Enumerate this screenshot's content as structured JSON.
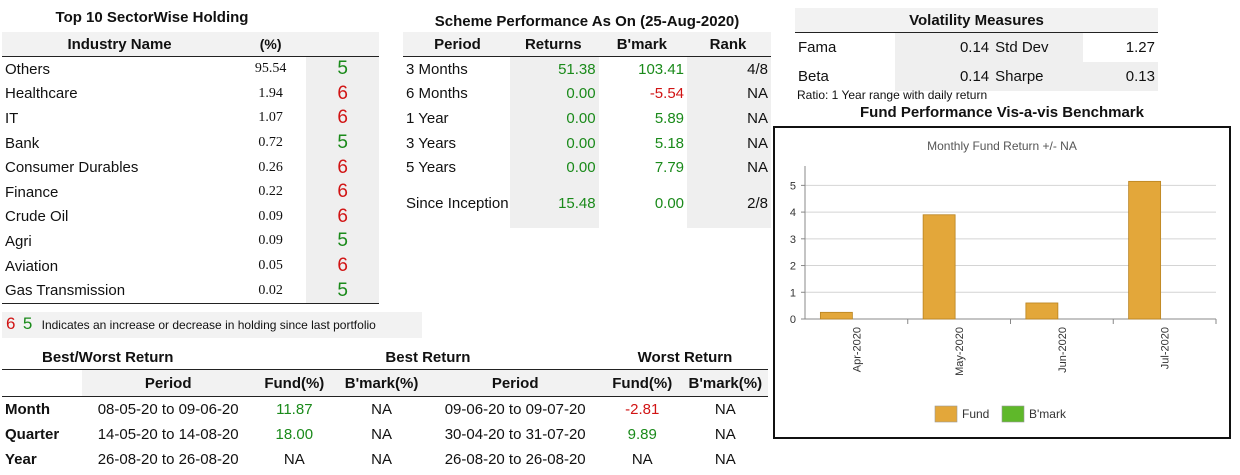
{
  "sector": {
    "title": "Top 10 SectorWise Holding",
    "col_name": "Industry Name",
    "col_pct": "(%)",
    "rows": [
      {
        "name": "Others",
        "pct": "95.54",
        "ind": "5",
        "dir": "green"
      },
      {
        "name": "Healthcare",
        "pct": "1.94",
        "ind": "6",
        "dir": "red"
      },
      {
        "name": "IT",
        "pct": "1.07",
        "ind": "6",
        "dir": "red"
      },
      {
        "name": "Bank",
        "pct": "0.72",
        "ind": "5",
        "dir": "green"
      },
      {
        "name": "Consumer Durables",
        "pct": "0.26",
        "ind": "6",
        "dir": "red"
      },
      {
        "name": "Finance",
        "pct": "0.22",
        "ind": "6",
        "dir": "red"
      },
      {
        "name": "Crude Oil",
        "pct": "0.09",
        "ind": "6",
        "dir": "red"
      },
      {
        "name": "Agri",
        "pct": "0.09",
        "ind": "5",
        "dir": "green"
      },
      {
        "name": "Aviation",
        "pct": "0.05",
        "ind": "6",
        "dir": "red"
      },
      {
        "name": "Gas Transmission",
        "pct": "0.02",
        "ind": "5",
        "dir": "green"
      }
    ],
    "legend": {
      "up": "6",
      "down": "5",
      "text": "Indicates an increase or decrease in holding since last portfolio"
    }
  },
  "performance": {
    "title": "Scheme Performance As On (25-Aug-2020)",
    "headers": [
      "Period",
      "Returns",
      "B'mark",
      "Rank"
    ],
    "rows": [
      {
        "period": "3 Months",
        "ret": "51.38",
        "bm": "103.41",
        "rank": "4/8",
        "bm_color": "green"
      },
      {
        "period": "6 Months",
        "ret": "0.00",
        "bm": "-5.54",
        "rank": "NA",
        "bm_color": "red"
      },
      {
        "period": "1 Year",
        "ret": "0.00",
        "bm": "5.89",
        "rank": "NA",
        "bm_color": "green"
      },
      {
        "period": "3 Years",
        "ret": "0.00",
        "bm": "5.18",
        "rank": "NA",
        "bm_color": "green"
      },
      {
        "period": "5 Years",
        "ret": "0.00",
        "bm": "7.79",
        "rank": "NA",
        "bm_color": "green"
      },
      {
        "period": "Since Inception",
        "ret": "15.48",
        "bm": "0.00",
        "rank": "2/8",
        "bm_color": "green"
      }
    ]
  },
  "volatility": {
    "title": "Volatility Measures",
    "rows": [
      {
        "l1": "Fama",
        "v1": "0.14",
        "l2": "Std Dev",
        "v2": "1.27"
      },
      {
        "l1": "Beta",
        "v1": "0.14",
        "l2": "Sharpe",
        "v2": "0.13"
      }
    ],
    "note": "Ratio: 1 Year range with daily return"
  },
  "bestworst": {
    "group_headers": [
      "Best/Worst Return",
      "Best Return",
      "Worst Return"
    ],
    "sub_headers": [
      "Period",
      "Fund(%)",
      "B'mark(%)",
      "Period",
      "Fund(%)",
      "B'mark(%)"
    ],
    "rows": [
      {
        "label": "Month",
        "bp": "08-05-20 to 09-06-20",
        "bf": "11.87",
        "bf_color": "green",
        "bb": "NA",
        "wp": "09-06-20 to 09-07-20",
        "wf": "-2.81",
        "wf_color": "red",
        "wb": "NA"
      },
      {
        "label": "Quarter",
        "bp": "14-05-20 to 14-08-20",
        "bf": "18.00",
        "bf_color": "green",
        "bb": "NA",
        "wp": "30-04-20 to 31-07-20",
        "wf": "9.89",
        "wf_color": "green",
        "wb": "NA"
      },
      {
        "label": "Year",
        "bp": "26-08-20 to 26-08-20",
        "bf": "NA",
        "bf_color": "",
        "bb": "NA",
        "wp": "26-08-20 to 26-08-20",
        "wf": "NA",
        "wf_color": "",
        "wb": "NA"
      }
    ]
  },
  "chart_title": "Fund Performance Vis-a-vis Benchmark",
  "chart_data": {
    "type": "bar",
    "title": "Monthly Fund Return +/- NA",
    "categories": [
      "Apr-2020",
      "May-2020",
      "Jun-2020",
      "Jul-2020"
    ],
    "series": [
      {
        "name": "Fund",
        "values": [
          0.25,
          3.9,
          0.6,
          5.15
        ],
        "color": "#e3a73a"
      },
      {
        "name": "B'mark",
        "values": [
          null,
          null,
          null,
          null
        ],
        "color": "#5fb82a"
      }
    ],
    "ylim": [
      0,
      5.5
    ],
    "yticks": [
      0,
      1,
      2,
      3,
      4,
      5
    ],
    "grid": true,
    "legend_position": "bottom"
  }
}
